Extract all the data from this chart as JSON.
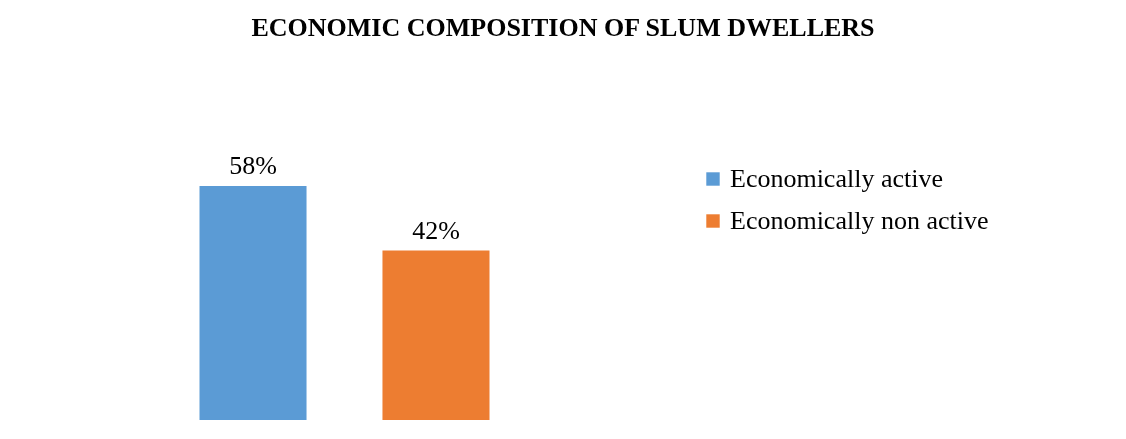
{
  "chart_data": {
    "type": "bar",
    "title": "ECONOMIC COMPOSITION OF SLUM DWELLERS",
    "categories": [
      null
    ],
    "legend": "right",
    "series": [
      {
        "name": "Economically active",
        "color": "#5b9bd5",
        "values": [
          58
        ],
        "value_labels": [
          "58%"
        ]
      },
      {
        "name": "Economically non active",
        "color": "#ed7d31",
        "values": [
          42
        ],
        "value_labels": [
          "42%"
        ]
      }
    ]
  }
}
